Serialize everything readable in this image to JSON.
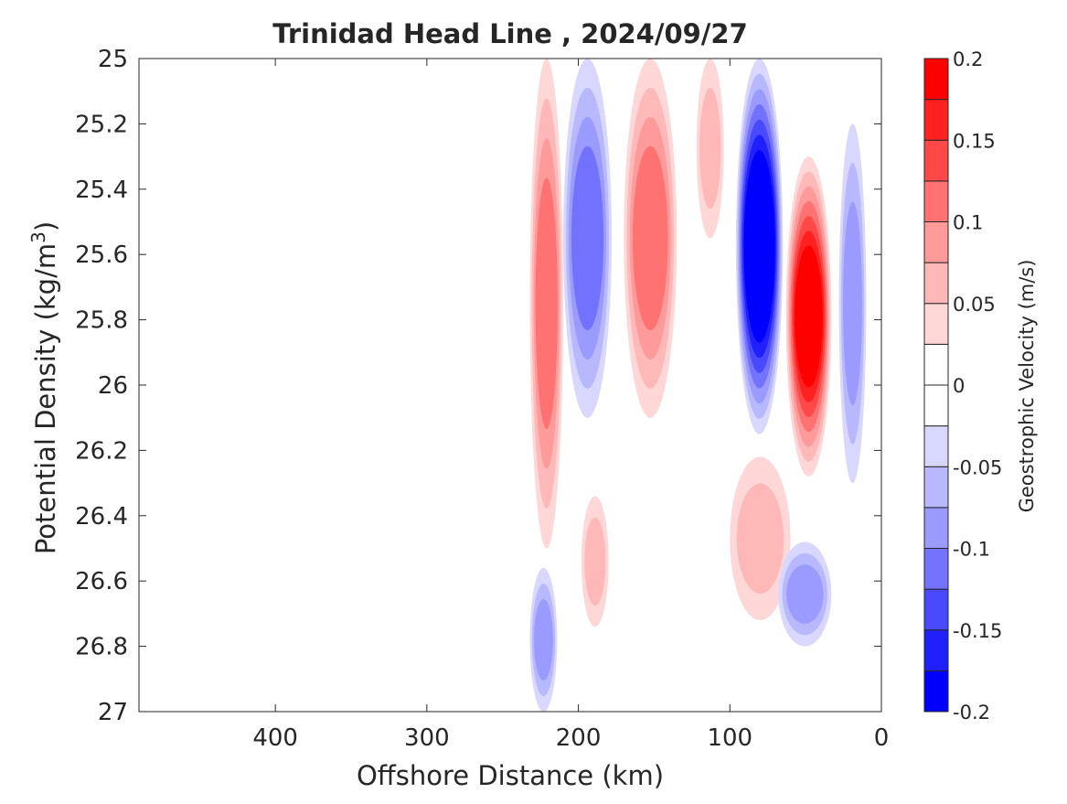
{
  "chart_data": {
    "type": "heatmap",
    "subtype": "filled-contour",
    "title": "Trinidad Head Line , 2024/09/27",
    "xlabel": "Offshore Distance (km)",
    "ylabel_prefix": "Potential Density (kg/m",
    "ylabel_sup": "3",
    "ylabel_suffix": ")",
    "xlim": [
      490,
      0
    ],
    "ylim": [
      25,
      27
    ],
    "x_reversed": true,
    "y_reversed": true,
    "x_ticks": [
      400,
      300,
      200,
      100,
      0
    ],
    "x_tick_labels": [
      "400",
      "300",
      "200",
      "100",
      "0"
    ],
    "y_ticks": [
      25,
      25.2,
      25.4,
      25.6,
      25.8,
      26,
      26.2,
      26.4,
      26.6,
      26.8,
      27
    ],
    "y_tick_labels": [
      "25",
      "25.2",
      "25.4",
      "25.6",
      "25.8",
      "26",
      "26.2",
      "26.4",
      "26.6",
      "26.8",
      "27"
    ],
    "grid": false,
    "colorbar": {
      "label": "Geostrophic Velocity (m/s)",
      "range": [
        -0.2,
        0.2
      ],
      "step": 0.025,
      "tick_values": [
        0.2,
        0.15,
        0.1,
        0.05,
        0,
        -0.05,
        -0.1,
        -0.15,
        -0.2
      ],
      "tick_labels": [
        "0.2",
        "0.15",
        "0.1",
        "0.05",
        "0",
        "-0.05",
        "-0.1",
        "-0.15",
        "-0.2"
      ],
      "colors": [
        "#0000ff",
        "#2020ff",
        "#4949ff",
        "#7272ff",
        "#9a9aff",
        "#b8b8ff",
        "#d7d7ff",
        "#ffffff",
        "#ffffff",
        "#ffd7d7",
        "#ffb8b8",
        "#ff9a9a",
        "#ff7272",
        "#ff4949",
        "#ff2020",
        "#ff0000"
      ]
    },
    "features": [
      {
        "name": "core-230km",
        "velocity": 0.1,
        "x_range": [
          232,
          210
        ],
        "sigma_range": [
          25,
          26.5
        ]
      },
      {
        "name": "core-190km",
        "velocity": -0.1,
        "x_range": [
          210,
          178
        ],
        "sigma_range": [
          25,
          26.1
        ]
      },
      {
        "name": "core-150km",
        "velocity": 0.1,
        "x_range": [
          170,
          135
        ],
        "sigma_range": [
          25,
          26.1
        ]
      },
      {
        "name": "core-115km",
        "velocity": 0.05,
        "x_range": [
          122,
          104
        ],
        "sigma_range": [
          25,
          25.55
        ]
      },
      {
        "name": "core-80km",
        "velocity": -0.2,
        "x_range": [
          96,
          65
        ],
        "sigma_range": [
          25,
          26.15
        ]
      },
      {
        "name": "core-50km",
        "velocity": 0.175,
        "x_range": [
          63,
          33
        ],
        "sigma_range": [
          25.3,
          26.28
        ]
      },
      {
        "name": "core-20km",
        "velocity": -0.075,
        "x_range": [
          28,
          10
        ],
        "sigma_range": [
          25.2,
          26.3
        ]
      },
      {
        "name": "deep-190km",
        "velocity": 0.05,
        "x_range": [
          198,
          180
        ],
        "sigma_range": [
          26.34,
          26.74
        ]
      },
      {
        "name": "deep-85km",
        "velocity": 0.05,
        "x_range": [
          100,
          60
        ],
        "sigma_range": [
          26.22,
          26.72
        ]
      },
      {
        "name": "deep-40km",
        "velocity": -0.075,
        "x_range": [
          68,
          33
        ],
        "sigma_range": [
          26.48,
          26.8
        ]
      },
      {
        "name": "deep-225km",
        "velocity": -0.075,
        "x_range": [
          232,
          214
        ],
        "sigma_range": [
          26.56,
          27
        ]
      }
    ]
  }
}
